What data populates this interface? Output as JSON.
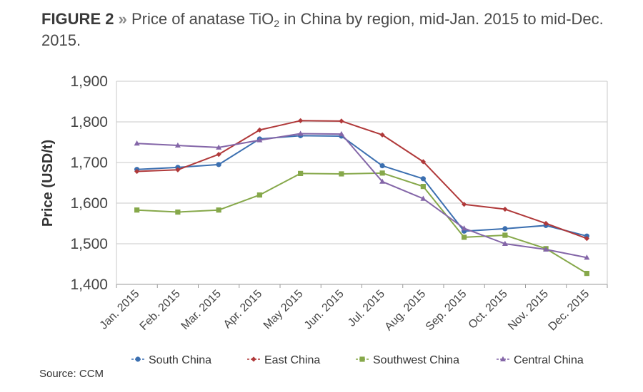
{
  "figure": {
    "label": "FIGURE 2",
    "separator": "»",
    "title_before_sub": "Price of anatase TiO",
    "title_sub": "2",
    "title_after_sub": " in China by region, mid-Jan. 2015 to mid-Dec. 2015."
  },
  "source": "Source: CCM",
  "chart_data": {
    "type": "line",
    "ylabel": "Price (USD/t)",
    "xlabel": "",
    "categories": [
      "Jan. 2015",
      "Feb. 2015",
      "Mar. 2015",
      "Apr. 2015",
      "May 2015",
      "Jun. 2015",
      "Jul. 2015",
      "Aug. 2015",
      "Sep. 2015",
      "Oct. 2015",
      "Nov. 2015",
      "Dec. 2015"
    ],
    "ylim": [
      1400,
      1900
    ],
    "yticks": [
      1400,
      1500,
      1600,
      1700,
      1800,
      1900
    ],
    "ytick_labels": [
      "1,400",
      "1,500",
      "1,600",
      "1,700",
      "1,800",
      "1,900"
    ],
    "grid": true,
    "legend_position": "bottom",
    "series": [
      {
        "name": "South China",
        "color": "#3b6fb0",
        "marker": "circle",
        "values": [
          1683,
          1688,
          1695,
          1758,
          1766,
          1765,
          1692,
          1660,
          1531,
          1537,
          1545,
          1519
        ]
      },
      {
        "name": "East China",
        "color": "#b0393a",
        "marker": "diamond",
        "values": [
          1678,
          1682,
          1720,
          1780,
          1803,
          1802,
          1768,
          1702,
          1597,
          1585,
          1550,
          1513
        ]
      },
      {
        "name": "Southwest China",
        "color": "#86a84a",
        "marker": "square",
        "values": [
          1583,
          1578,
          1583,
          1620,
          1673,
          1672,
          1674,
          1641,
          1516,
          1521,
          1488,
          1427
        ]
      },
      {
        "name": "Central China",
        "color": "#8466a8",
        "marker": "triangle",
        "values": [
          1747,
          1742,
          1737,
          1755,
          1771,
          1770,
          1653,
          1611,
          1538,
          1500,
          1486,
          1466
        ]
      }
    ]
  }
}
